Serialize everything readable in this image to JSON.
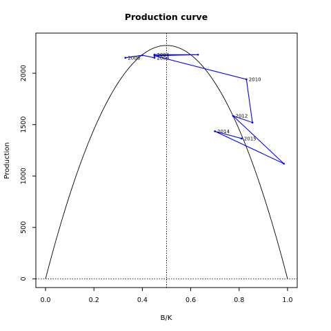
{
  "chart_data": {
    "type": "line",
    "title": "Production curve",
    "xlabel": "B/K",
    "ylabel": "Production",
    "xlim": [
      -0.04,
      1.04
    ],
    "ylim": [
      -85,
      2390
    ],
    "x_ticks": [
      0.0,
      0.2,
      0.4,
      0.6,
      0.8,
      1.0
    ],
    "x_tick_labels": [
      "0.0",
      "0.2",
      "0.4",
      "0.6",
      "0.8",
      "1.0"
    ],
    "y_ticks": [
      0,
      500,
      1000,
      1500,
      2000
    ],
    "y_tick_labels": [
      "0",
      "500",
      "1000",
      "1500",
      "2000"
    ],
    "grid": false,
    "colors": {
      "curve": "#000000",
      "trajectory": "#0000ff",
      "reference": "#000000"
    },
    "reference_lines": {
      "vertical_x": 0.5,
      "horizontal_y": 0
    },
    "curve": {
      "form": "parabola",
      "peak_x": 0.5,
      "peak_y": 2270
    },
    "trajectory": {
      "x": [
        0.33,
        0.4,
        0.45,
        0.45,
        0.63,
        0.45,
        0.83,
        0.855,
        0.775,
        0.985,
        0.7,
        0.81
      ],
      "y": [
        2150,
        2175,
        2150,
        2180,
        2180,
        2170,
        1940,
        1520,
        1585,
        1120,
        1435,
        1365
      ]
    },
    "labeled_points": [
      {
        "label": "2006",
        "x": 0.33,
        "y": 2150
      },
      {
        "label": "2008",
        "x": 0.45,
        "y": 2150
      },
      {
        "label": "2004",
        "x": 0.45,
        "y": 2180
      },
      {
        "label": "2010",
        "x": 0.83,
        "y": 1940
      },
      {
        "label": "2012",
        "x": 0.775,
        "y": 1585
      },
      {
        "label": "2014",
        "x": 0.7,
        "y": 1435
      },
      {
        "label": "2015",
        "x": 0.81,
        "y": 1365
      }
    ]
  }
}
